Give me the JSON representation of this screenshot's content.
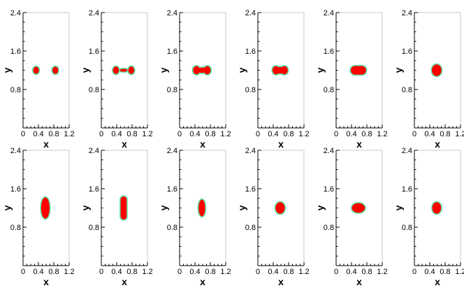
{
  "chart_data": {
    "type": "panel-grid",
    "xlabel": "x",
    "ylabel": "y",
    "xlim": [
      0,
      1.2
    ],
    "ylim": [
      0,
      2.4
    ],
    "xticks": [
      0,
      0.4,
      0.8,
      1.2
    ],
    "yticks": [
      0.8,
      1.6,
      2.4
    ],
    "xtick_labels": [
      "0",
      "0.4",
      "0.8",
      "1.2"
    ],
    "ytick_labels": [
      "0.8",
      "1.6",
      "2.4"
    ],
    "fill_color": "#ff0000",
    "outline_color": "#5fe8a8",
    "panels": [
      {
        "row": 0,
        "col": 0,
        "shapes": [
          {
            "kind": "circle",
            "cx": 0.34,
            "cy": 1.2,
            "rx": 0.075,
            "ry": 0.075
          },
          {
            "kind": "circle",
            "cx": 0.84,
            "cy": 1.2,
            "rx": 0.075,
            "ry": 0.075
          }
        ]
      },
      {
        "row": 0,
        "col": 1,
        "shapes": [
          {
            "kind": "circle",
            "cx": 0.38,
            "cy": 1.2,
            "rx": 0.078,
            "ry": 0.078
          },
          {
            "kind": "circle",
            "cx": 0.78,
            "cy": 1.2,
            "rx": 0.078,
            "ry": 0.078
          },
          {
            "kind": "bridge",
            "cx": 0.58,
            "cy": 1.2,
            "rx": 0.1,
            "ry": 0.03
          }
        ]
      },
      {
        "row": 0,
        "col": 2,
        "shapes": [
          {
            "kind": "circle",
            "cx": 0.44,
            "cy": 1.2,
            "rx": 0.09,
            "ry": 0.085
          },
          {
            "kind": "circle",
            "cx": 0.72,
            "cy": 1.2,
            "rx": 0.09,
            "ry": 0.085
          },
          {
            "kind": "bridge",
            "cx": 0.58,
            "cy": 1.2,
            "rx": 0.14,
            "ry": 0.055
          }
        ]
      },
      {
        "row": 0,
        "col": 3,
        "shapes": [
          {
            "kind": "circle",
            "cx": 0.47,
            "cy": 1.2,
            "rx": 0.09,
            "ry": 0.085
          },
          {
            "kind": "circle",
            "cx": 0.69,
            "cy": 1.2,
            "rx": 0.09,
            "ry": 0.085
          },
          {
            "kind": "bridge",
            "cx": 0.58,
            "cy": 1.2,
            "rx": 0.12,
            "ry": 0.07
          }
        ]
      },
      {
        "row": 0,
        "col": 4,
        "shapes": [
          {
            "kind": "rounded",
            "cx": 0.58,
            "cy": 1.2,
            "rx": 0.2,
            "ry": 0.09
          }
        ]
      },
      {
        "row": 0,
        "col": 5,
        "shapes": [
          {
            "kind": "ellipse",
            "cx": 0.58,
            "cy": 1.2,
            "rx": 0.125,
            "ry": 0.12
          }
        ]
      },
      {
        "row": 1,
        "col": 0,
        "shapes": [
          {
            "kind": "ellipse",
            "cx": 0.58,
            "cy": 1.2,
            "rx": 0.11,
            "ry": 0.22
          }
        ]
      },
      {
        "row": 1,
        "col": 1,
        "shapes": [
          {
            "kind": "rounded",
            "cx": 0.58,
            "cy": 1.2,
            "rx": 0.078,
            "ry": 0.24
          }
        ]
      },
      {
        "row": 1,
        "col": 2,
        "shapes": [
          {
            "kind": "ellipse",
            "cx": 0.58,
            "cy": 1.2,
            "rx": 0.085,
            "ry": 0.175
          }
        ]
      },
      {
        "row": 1,
        "col": 3,
        "shapes": [
          {
            "kind": "ellipse",
            "cx": 0.58,
            "cy": 1.2,
            "rx": 0.12,
            "ry": 0.12
          }
        ]
      },
      {
        "row": 1,
        "col": 4,
        "shapes": [
          {
            "kind": "ellipse",
            "cx": 0.58,
            "cy": 1.2,
            "rx": 0.17,
            "ry": 0.1
          }
        ]
      },
      {
        "row": 1,
        "col": 5,
        "shapes": [
          {
            "kind": "ellipse",
            "cx": 0.58,
            "cy": 1.2,
            "rx": 0.115,
            "ry": 0.12
          }
        ]
      }
    ]
  }
}
